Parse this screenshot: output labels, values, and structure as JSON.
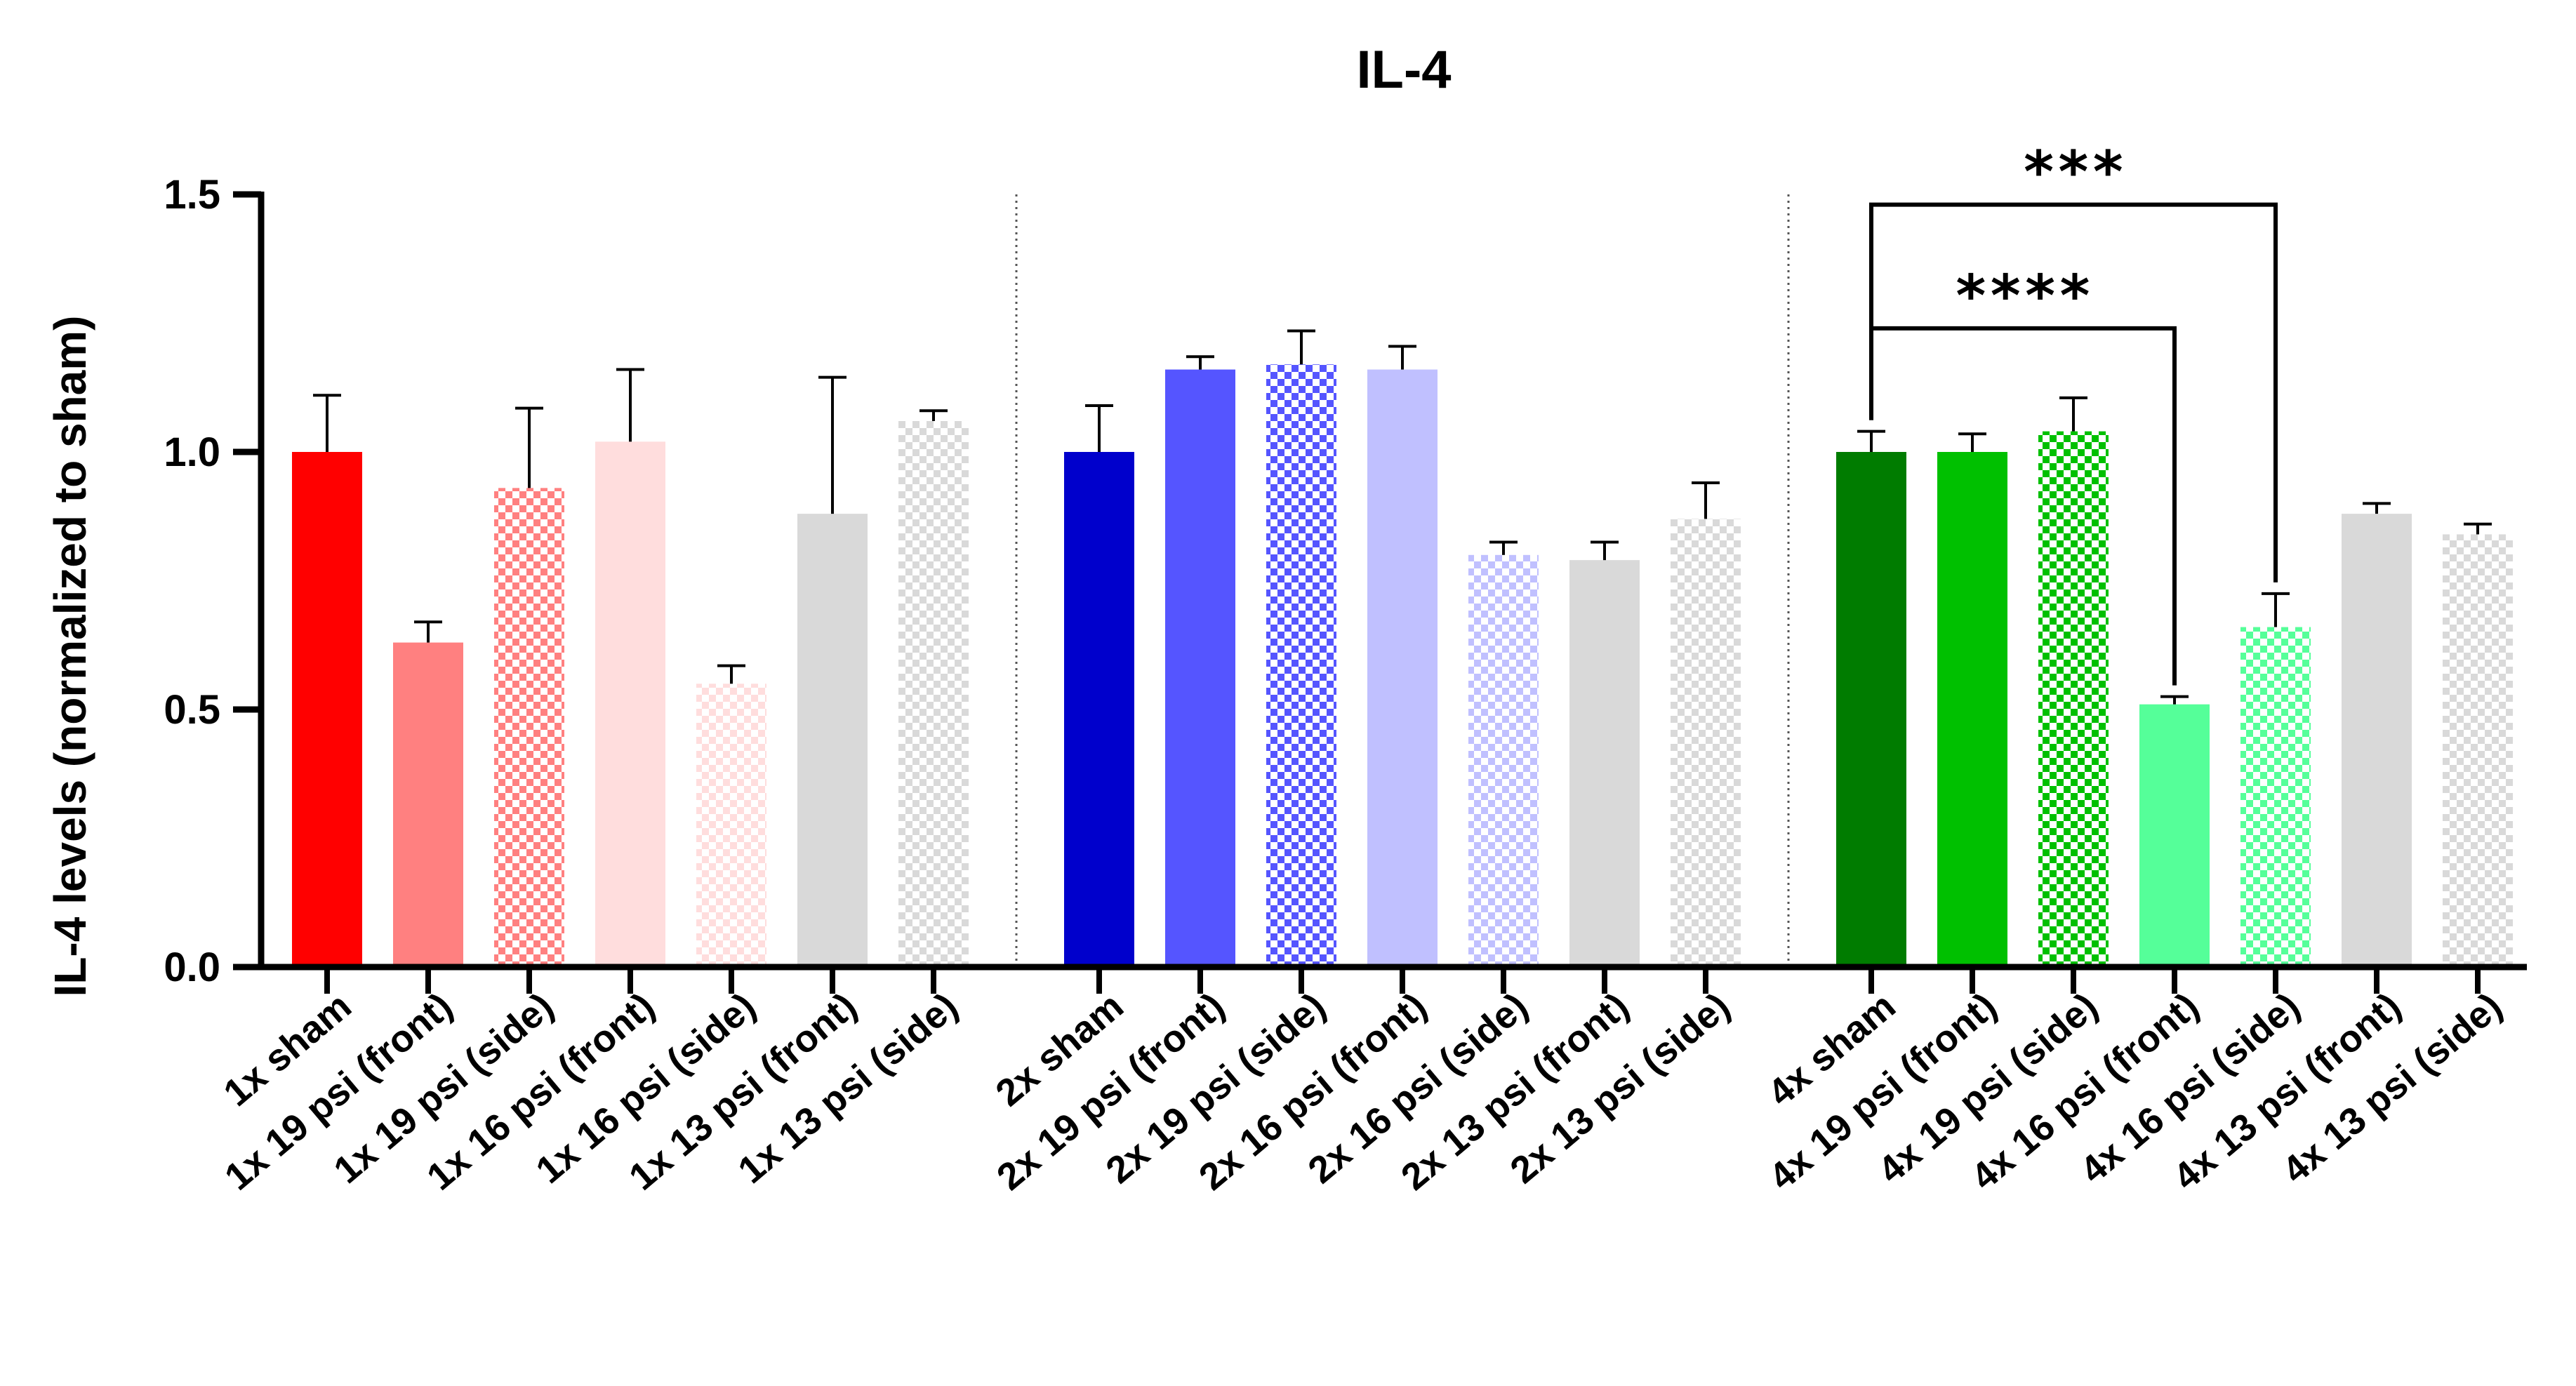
{
  "chart_data": {
    "type": "bar",
    "title": "IL-4",
    "xlabel": "",
    "ylabel": "IL-4 levels (normalized to sham)",
    "ylim": [
      0,
      1.5
    ],
    "yticks": [
      "0.0",
      "0.5",
      "1.0",
      "1.5"
    ],
    "ytick_values": [
      0,
      0.5,
      1.0,
      1.5
    ],
    "grid": false,
    "groups": [
      {
        "name": "1x",
        "bars": [
          {
            "label": "1x sham",
            "value": 1.0,
            "error": 0.11,
            "color": "#ff0000",
            "pattern": "solid"
          },
          {
            "label": "1x 19 psi (front)",
            "value": 0.63,
            "error": 0.04,
            "color": "#ff8080",
            "pattern": "solid"
          },
          {
            "label": "1x 19 psi (side)",
            "value": 0.93,
            "error": 0.155,
            "color": "#ff8080",
            "pattern": "checker"
          },
          {
            "label": "1x 16 psi (front)",
            "value": 1.02,
            "error": 0.14,
            "color": "#ffdddd",
            "pattern": "solid"
          },
          {
            "label": "1x 16 psi (side)",
            "value": 0.55,
            "error": 0.035,
            "color": "#ffdddd",
            "pattern": "checker"
          },
          {
            "label": "1x 13 psi (front)",
            "value": 0.88,
            "error": 0.265,
            "color": "#d9d9d9",
            "pattern": "solid"
          },
          {
            "label": "1x 13 psi (side)",
            "value": 1.06,
            "error": 0.02,
            "color": "#d9d9d9",
            "pattern": "checker"
          }
        ]
      },
      {
        "name": "2x",
        "bars": [
          {
            "label": "2x sham",
            "value": 1.0,
            "error": 0.09,
            "color": "#0000cc",
            "pattern": "solid"
          },
          {
            "label": "2x 19 psi (front)",
            "value": 1.16,
            "error": 0.025,
            "color": "#5555ff",
            "pattern": "solid"
          },
          {
            "label": "2x 19 psi (side)",
            "value": 1.17,
            "error": 0.065,
            "color": "#5555ff",
            "pattern": "checker"
          },
          {
            "label": "2x 16 psi (front)",
            "value": 1.16,
            "error": 0.045,
            "color": "#c0c0ff",
            "pattern": "solid"
          },
          {
            "label": "2x 16 psi (side)",
            "value": 0.8,
            "error": 0.025,
            "color": "#c0c0ff",
            "pattern": "checker"
          },
          {
            "label": "2x 13 psi (front)",
            "value": 0.79,
            "error": 0.035,
            "color": "#d9d9d9",
            "pattern": "solid"
          },
          {
            "label": "2x 13 psi (side)",
            "value": 0.87,
            "error": 0.07,
            "color": "#d9d9d9",
            "pattern": "checker"
          }
        ]
      },
      {
        "name": "4x",
        "bars": [
          {
            "label": "4x sham",
            "value": 1.0,
            "error": 0.04,
            "color": "#007c00",
            "pattern": "solid"
          },
          {
            "label": "4x 19 psi (front)",
            "value": 1.0,
            "error": 0.035,
            "color": "#00c000",
            "pattern": "solid"
          },
          {
            "label": "4x 19 psi (side)",
            "value": 1.04,
            "error": 0.065,
            "color": "#00c000",
            "pattern": "checker"
          },
          {
            "label": "4x 16 psi (front)",
            "value": 0.51,
            "error": 0.015,
            "color": "#55ff99",
            "pattern": "solid"
          },
          {
            "label": "4x 16 psi (side)",
            "value": 0.66,
            "error": 0.065,
            "color": "#55ff99",
            "pattern": "checker"
          },
          {
            "label": "4x 13 psi (front)",
            "value": 0.88,
            "error": 0.02,
            "color": "#d9d9d9",
            "pattern": "solid"
          },
          {
            "label": "4x 13 psi (side)",
            "value": 0.84,
            "error": 0.02,
            "color": "#d9d9d9",
            "pattern": "checker"
          }
        ]
      }
    ],
    "annotations": [
      {
        "text": "***",
        "from": "4x sham",
        "to": "4x 16 psi (side)",
        "bracket_y": 1.48
      },
      {
        "text": "****",
        "from": "4x sham",
        "to": "4x 16 psi (front)",
        "bracket_y": 1.24
      }
    ]
  }
}
